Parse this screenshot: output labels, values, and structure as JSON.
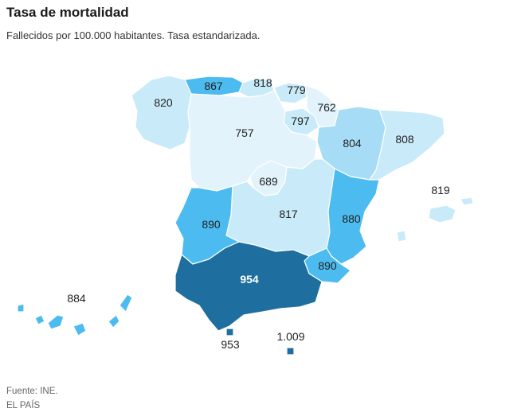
{
  "header": {
    "title": "Tasa de mortalidad",
    "subtitle": "Fallecidos por 100.000 habitantes. Tasa estandarizada."
  },
  "footer": {
    "source": "Fuente: INE.",
    "publisher": "EL PAÍS"
  },
  "colors": {
    "very_light": "#e3f3fb",
    "light": "#c9eaf8",
    "medium_light": "#a6dcf5",
    "medium": "#4cbcf0",
    "dark": "#1e6f9f"
  },
  "regions": {
    "galicia": "820",
    "asturias": "867",
    "cantabria": "818",
    "pais_vasco": "779",
    "navarra": "762",
    "la_rioja": "797",
    "castilla_leon": "757",
    "aragon": "804",
    "cataluna": "808",
    "madrid": "689",
    "castilla_la_mancha": "817",
    "baleares": "819",
    "extremadura": "890",
    "valencia": "880",
    "murcia": "890",
    "andalucia": "954",
    "canarias": "884",
    "ceuta": "953",
    "melilla": "1.009"
  }
}
